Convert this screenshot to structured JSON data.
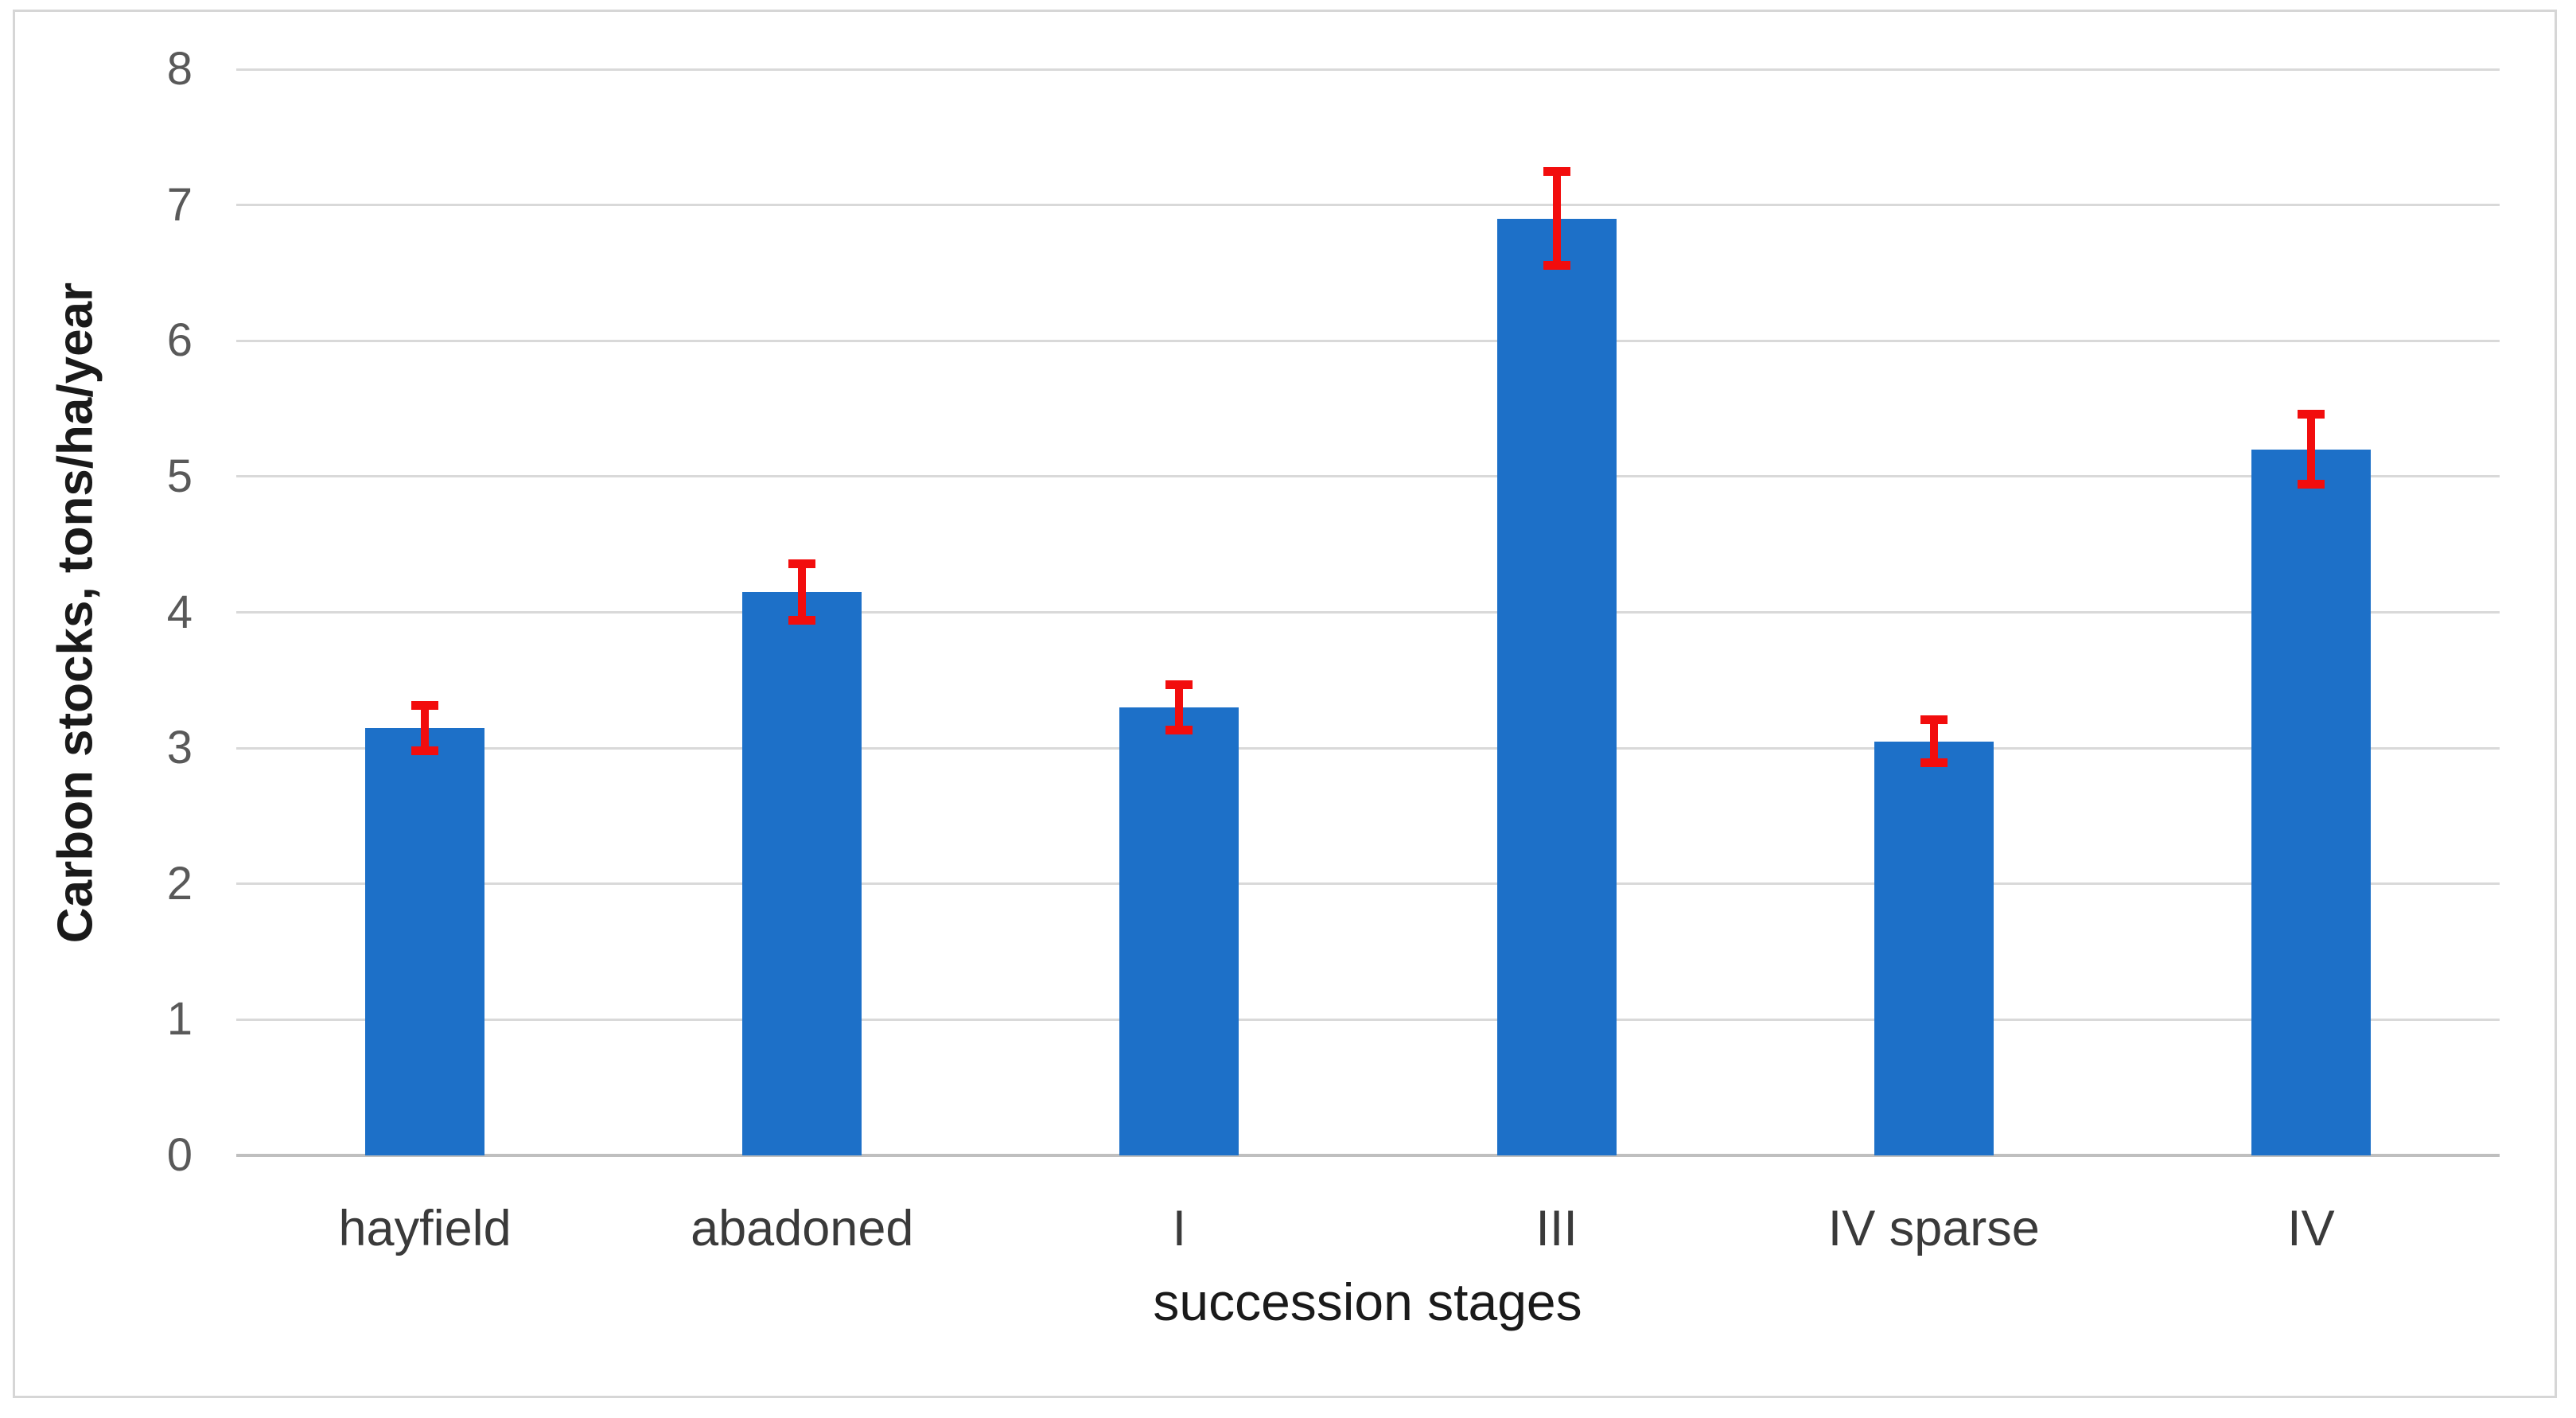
{
  "figure": {
    "background": "#FFFFFF",
    "border_color": "#D6D6D6"
  },
  "chart_data": {
    "type": "bar",
    "title": "",
    "categories": [
      "hayfield",
      "abadoned",
      "I",
      "III",
      "IV sparse",
      "IV"
    ],
    "values": [
      3.15,
      4.15,
      3.3,
      6.9,
      3.05,
      5.2
    ],
    "error_bars_plus_minus": [
      0.17,
      0.21,
      0.17,
      0.35,
      0.16,
      0.26
    ],
    "xlabel": "succession stages",
    "ylabel": "Carbon stocks, tons/ha/year",
    "ylim": [
      0,
      8
    ],
    "yticks": [
      0,
      1,
      2,
      3,
      4,
      5,
      6,
      7,
      8
    ],
    "grid": "horizontal",
    "legend": false,
    "colors": {
      "bar_fill": "#1D70C8",
      "error_bar": "#F20D0D",
      "gridline": "#D9D9D9",
      "axis_line": "#BFBFBF",
      "y_tick_label": "#595959",
      "x_tick_label": "#3A3A3A",
      "axis_title": "#1A1A1A"
    }
  }
}
